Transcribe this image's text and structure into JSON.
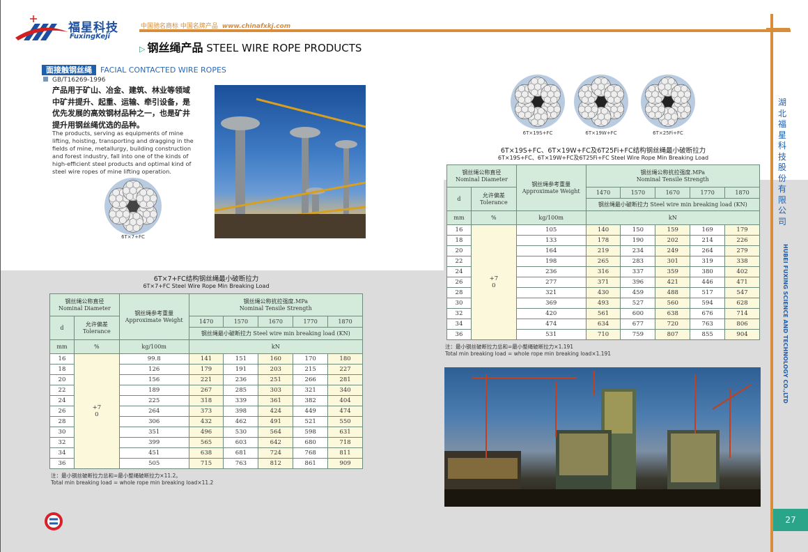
{
  "brand": {
    "name_cn": "福星科技",
    "name_en": "FuxingKeji",
    "slogan": "中国驰名商标   中国名牌产品",
    "website": "www.chinafxkj.com"
  },
  "header": {
    "title_cn": "钢丝绳产品",
    "title_en": "STEEL WIRE ROPE PRODUCTS"
  },
  "section": {
    "label_cn": "面接触钢丝绳",
    "label_en": "FACIAL CONTACTED WIRE ROPES",
    "standard": "GB/T16269-1996",
    "desc_cn": "产品用于矿山、冶金、建筑、林业等领域中矿井提升、起重、运输、牵引设备，是优先发展的高效钢材品种之一，也是矿井提升用钢丝绳优选的品种。",
    "desc_en": "The products, serving as equipments of mine lifting, hoisting, transporting and dragging in the fields of mine, metallurgy, building construction and forest industry, fall into one of the kinds of high-efficient steel products and optimal kind of steel wire ropes of mine lifting operation."
  },
  "rope_captions": {
    "left": "6T×7+FC",
    "r1": "6T×19S+FC",
    "r2": "6T×19W+FC",
    "r3": "6T×25Fi+FC"
  },
  "headers": {
    "diam_cn": "钢丝绳公称直径",
    "diam_en": "Nominal Diameter",
    "weight_cn": "钢丝绳参考重量",
    "weight_en": "Approximate Weight",
    "strength_cn": "钢丝绳公称抗拉强度.MPa",
    "strength_en": "Nominal Tensile Strength",
    "d": "d",
    "tol_cn": "允许偏差",
    "tol_en": "Tolerance",
    "load": "钢丝绳最小破断拉力 Steel wire min breaking load (KN)",
    "mm": "mm",
    "pct": "%",
    "kg": "kg/100m",
    "kn": "kN",
    "grades": [
      "1470",
      "1570",
      "1670",
      "1770",
      "1870"
    ],
    "tolerance": "+7\n0"
  },
  "table_left": {
    "title_cn": "6T×7+FC结构钢丝绳最小破断拉力",
    "title_en": "6T×7+FC Steel Wire Rope Min Breaking Load",
    "rows": [
      [
        "16",
        "99.8",
        "141",
        "151",
        "160",
        "170",
        "180"
      ],
      [
        "18",
        "126",
        "179",
        "191",
        "203",
        "215",
        "227"
      ],
      [
        "20",
        "156",
        "221",
        "236",
        "251",
        "266",
        "281"
      ],
      [
        "22",
        "189",
        "267",
        "285",
        "303",
        "321",
        "340"
      ],
      [
        "24",
        "225",
        "318",
        "339",
        "361",
        "382",
        "404"
      ],
      [
        "26",
        "264",
        "373",
        "398",
        "424",
        "449",
        "474"
      ],
      [
        "28",
        "306",
        "432",
        "462",
        "491",
        "521",
        "550"
      ],
      [
        "30",
        "351",
        "496",
        "530",
        "564",
        "598",
        "631"
      ],
      [
        "32",
        "399",
        "565",
        "603",
        "642",
        "680",
        "718"
      ],
      [
        "34",
        "451",
        "638",
        "681",
        "724",
        "768",
        "811"
      ],
      [
        "36",
        "505",
        "715",
        "763",
        "812",
        "861",
        "909"
      ]
    ],
    "note_cn": "注：最小钢丝破断拉力总和=最小整绳破断拉力×11.2。",
    "note_en": "Total min breaking load = whole rope min breaking load×11.2"
  },
  "table_right": {
    "title_cn": "6T×19S+FC、6T×19W+FC及6T25Fi+FC结构钢丝绳最小破断拉力",
    "title_en": "6T×19S+FC、6T×19W+FC及6T25Fi+FC Steel Wire Rope Min Breaking Load",
    "rows": [
      [
        "16",
        "105",
        "140",
        "150",
        "159",
        "169",
        "179"
      ],
      [
        "18",
        "133",
        "178",
        "190",
        "202",
        "214",
        "226"
      ],
      [
        "20",
        "164",
        "219",
        "234",
        "249",
        "264",
        "279"
      ],
      [
        "22",
        "198",
        "265",
        "283",
        "301",
        "319",
        "338"
      ],
      [
        "24",
        "236",
        "316",
        "337",
        "359",
        "380",
        "402"
      ],
      [
        "26",
        "277",
        "371",
        "396",
        "421",
        "446",
        "471"
      ],
      [
        "28",
        "321",
        "430",
        "459",
        "488",
        "517",
        "547"
      ],
      [
        "30",
        "369",
        "493",
        "527",
        "560",
        "594",
        "628"
      ],
      [
        "32",
        "420",
        "561",
        "600",
        "638",
        "676",
        "714"
      ],
      [
        "34",
        "474",
        "634",
        "677",
        "720",
        "763",
        "806"
      ],
      [
        "36",
        "531",
        "710",
        "759",
        "807",
        "855",
        "904"
      ]
    ],
    "note_cn": "注：最小钢丝破断拉力总和=最小整绳破断拉力×1.191",
    "note_en": "Total min breaking load = whole rope min breaking load×1.191"
  },
  "side": {
    "company_cn": "湖北福星科技股份有限公司",
    "company_en": "HUBEI FUXING SCIENCE AND TECHNOLOGY CO.,LTD"
  },
  "page_number": "27",
  "colors": {
    "accent_orange": "#d98c3a",
    "brand_blue": "#1f5fab",
    "header_green": "#d4ebdc",
    "cell_yellow": "#fbf8dc",
    "page_tab": "#2aa58a"
  }
}
